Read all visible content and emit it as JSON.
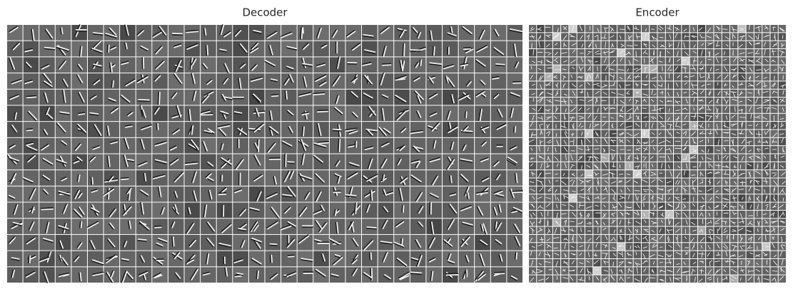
{
  "panels": [
    {
      "title": "Decoder"
    },
    {
      "title": "Encoder"
    }
  ]
}
